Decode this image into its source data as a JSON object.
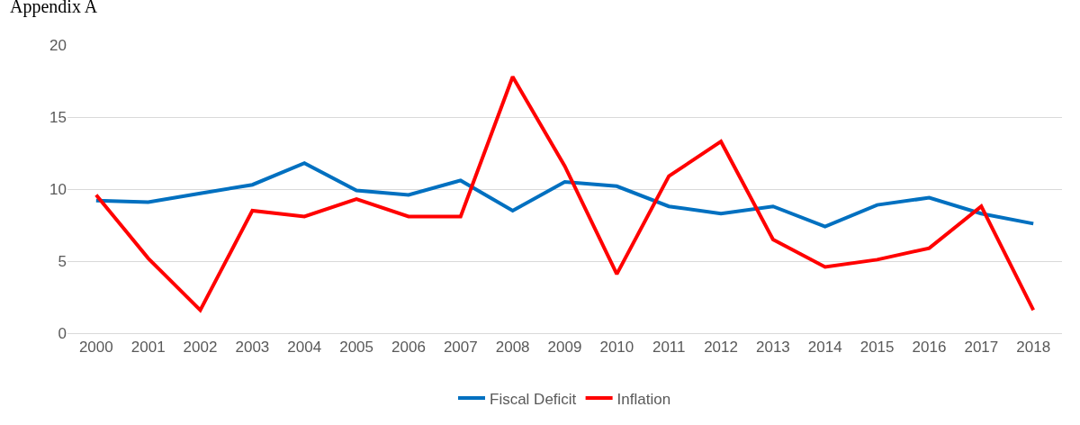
{
  "chart_data": {
    "type": "line",
    "categories": [
      "2000",
      "2001",
      "2002",
      "2003",
      "2004",
      "2005",
      "2006",
      "2007",
      "2008",
      "2009",
      "2010",
      "2011",
      "2012",
      "2013",
      "2014",
      "2015",
      "2016",
      "2017",
      "2018"
    ],
    "series": [
      {
        "name": "Fiscal Deficit",
        "color": "#0070c0",
        "values": [
          9.2,
          9.1,
          9.7,
          10.3,
          11.8,
          9.9,
          9.6,
          10.6,
          8.5,
          10.5,
          10.2,
          8.8,
          8.3,
          8.8,
          7.4,
          8.9,
          9.4,
          8.3,
          7.6
        ]
      },
      {
        "name": "Inflation",
        "color": "#ff0000",
        "values": [
          9.6,
          5.2,
          1.6,
          8.5,
          8.1,
          9.3,
          8.1,
          8.1,
          17.8,
          11.6,
          4.1,
          10.9,
          13.3,
          6.5,
          4.6,
          5.1,
          5.9,
          8.8,
          1.6
        ]
      }
    ],
    "ylim": [
      0,
      20
    ],
    "yticks": [
      0,
      5,
      10,
      15,
      20
    ],
    "grid": "y",
    "legend": "bottom",
    "marker": "none",
    "line_style": "solid",
    "annotations": [
      "Appendix A"
    ]
  }
}
